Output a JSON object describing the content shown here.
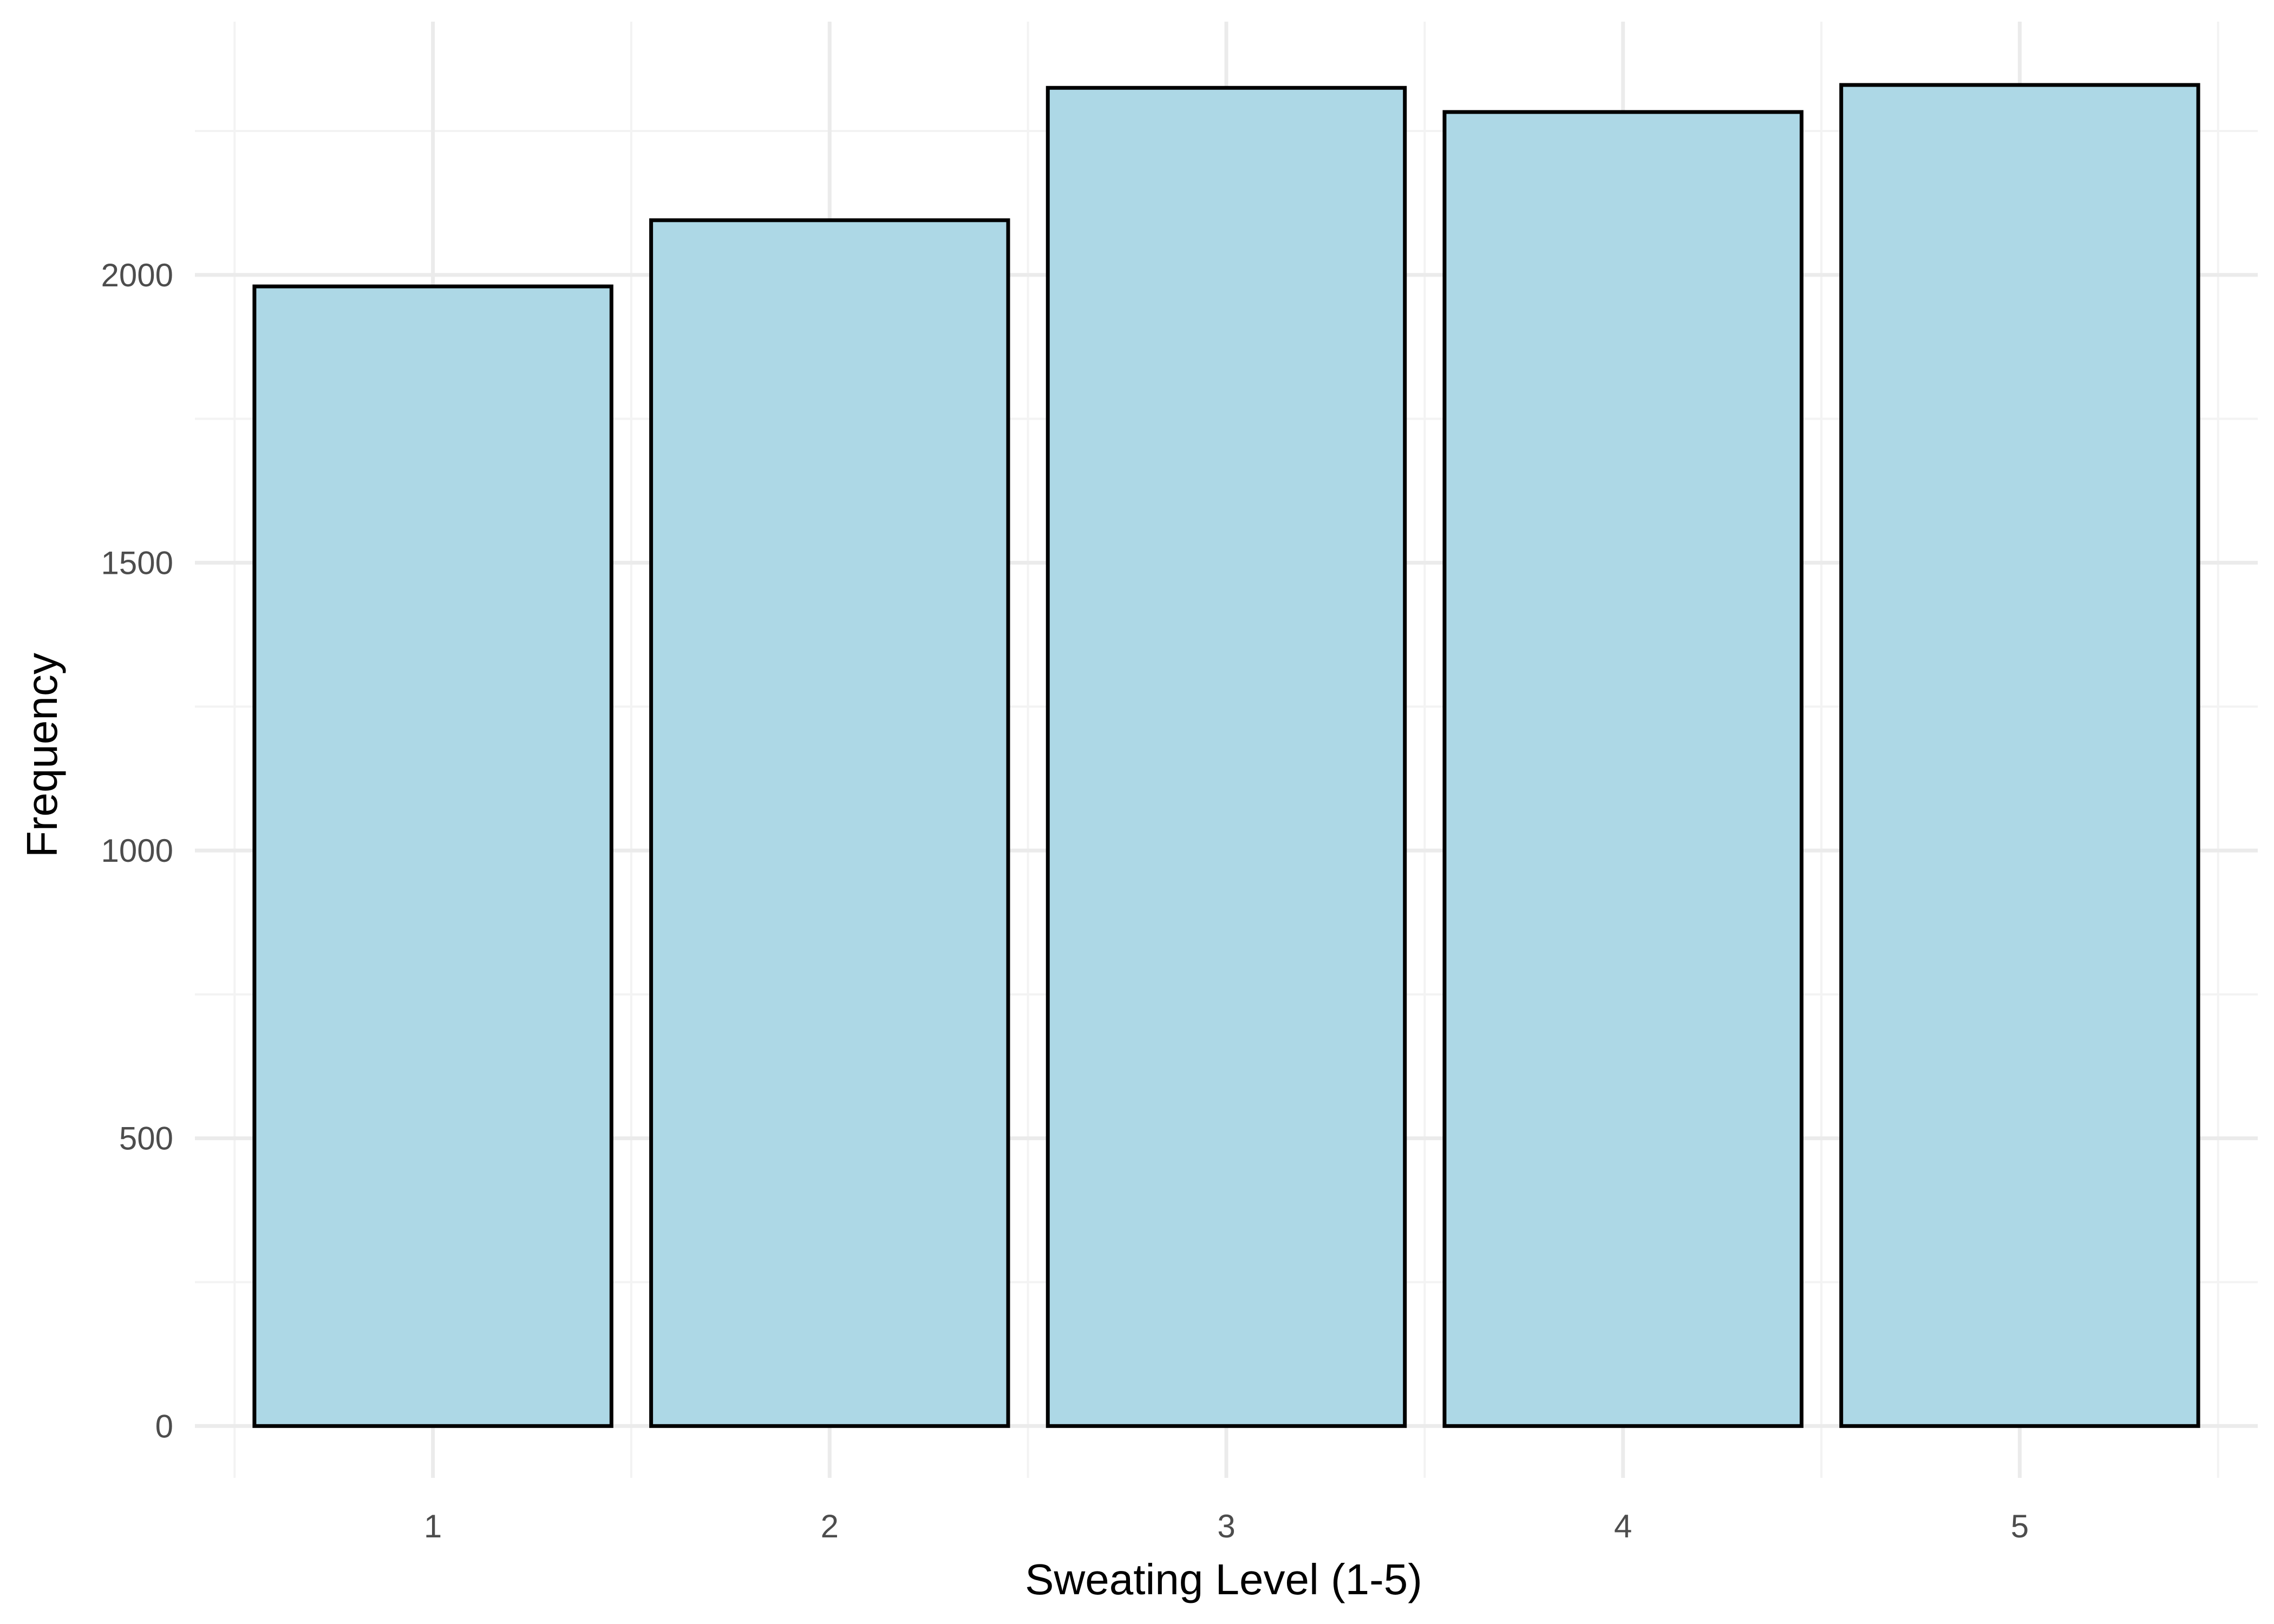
{
  "chart_data": {
    "type": "bar",
    "title": "",
    "xlabel": "Sweating Level (1-5)",
    "ylabel": "Frequency",
    "categories": [
      "1",
      "2",
      "3",
      "4",
      "5"
    ],
    "values": [
      1980,
      2095,
      2325,
      2283,
      2330
    ],
    "ylim": [
      -90,
      2440
    ],
    "yticks": [
      0,
      500,
      1000,
      1500,
      2000
    ],
    "grid": true,
    "legend": "none",
    "colors": {
      "bar_fill": "#add8e6",
      "bar_stroke": "#000000",
      "grid_major": "#ebebeb",
      "grid_minor": "#f3f3f3",
      "tick_text": "#4d4d4d",
      "title_text": "#000000"
    }
  }
}
